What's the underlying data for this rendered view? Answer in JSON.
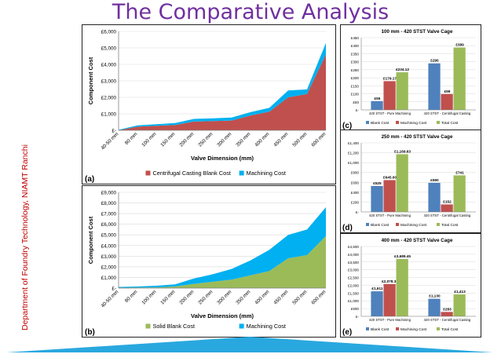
{
  "slide": {
    "title": "The Comparative Analysis",
    "side_caption": "Department of Foundry Technology, NIAMT Ranchi"
  },
  "colors": {
    "title": "#7030a0",
    "side": "#c00000",
    "blank": "#c0504d",
    "machining": "#00b0f0",
    "solid": "#9bbb59",
    "bar_blank": "#4f81bd",
    "bar_machining": "#c0504d",
    "bar_total": "#9bbb59",
    "triangle": "#29a8df"
  },
  "chart_data": [
    {
      "id": "a",
      "panel_label": "(a)",
      "type": "area",
      "stacked": true,
      "categories": [
        "40-50 mm",
        "80 mm",
        "100 mm",
        "150 mm",
        "200 mm",
        "250 mm",
        "300 mm",
        "350 mm",
        "400 mm",
        "450 mm",
        "500 mm",
        "600 mm"
      ],
      "series": [
        {
          "name": "Centrifugal Casting Blank Cost",
          "color": "#c0504d",
          "values": [
            0,
            220,
            270,
            320,
            530,
            560,
            590,
            900,
            1130,
            2000,
            2200,
            4600
          ]
        },
        {
          "name": "Machining Cost",
          "color": "#00b0f0",
          "values": [
            30,
            80,
            100,
            120,
            160,
            170,
            180,
            200,
            230,
            420,
            280,
            700
          ]
        }
      ],
      "y_ticks": [
        "£-",
        "£1,000",
        "£2,000",
        "£3,000",
        "£4,000",
        "£5,000",
        "£6,000"
      ],
      "ylim": [
        0,
        6000
      ],
      "xlabel": "Valve Dimension (mm)",
      "ylabel": "Component Cost",
      "legend": [
        "Centrifugal Casting Blank Cost",
        "Machining Cost"
      ]
    },
    {
      "id": "b",
      "panel_label": "(b)",
      "type": "area",
      "stacked": true,
      "categories": [
        "40-50 mm",
        "80 mm",
        "100 mm",
        "150 mm",
        "200 mm",
        "250 mm",
        "300 mm",
        "350 mm",
        "400 mm",
        "450 mm",
        "500 mm",
        "600 mm"
      ],
      "series": [
        {
          "name": "Solid Blank Cost",
          "color": "#9bbb59",
          "values": [
            20,
            50,
            70,
            150,
            400,
            600,
            800,
            1200,
            1600,
            2800,
            3100,
            4900
          ]
        },
        {
          "name": "Machining Cost",
          "color": "#00b0f0",
          "values": [
            80,
            100,
            150,
            200,
            500,
            700,
            1000,
            1400,
            2000,
            2200,
            2400,
            2700
          ]
        }
      ],
      "y_ticks": [
        "£-",
        "£1,000",
        "£2,000",
        "£3,000",
        "£4,000",
        "£5,000",
        "£6,000",
        "£7,000",
        "£8,000",
        "£9,000"
      ],
      "ylim": [
        0,
        9000
      ],
      "xlabel": "Valve Dimension (mm)",
      "ylabel": "Component Cost",
      "legend": [
        "Solid Blank Cost",
        "Machining Cost"
      ]
    },
    {
      "id": "c",
      "panel_label": "(c)",
      "type": "bar",
      "title": "100 mm - 420 STST Valve Cage",
      "categories": [
        "420 STST - Pure Machining",
        "420 STST - Centrifugal Casting"
      ],
      "series": [
        {
          "name": "Blank Cost",
          "color": "#4f81bd",
          "values": [
            55,
            290
          ],
          "labels": [
            "£55",
            "£290"
          ]
        },
        {
          "name": "Machining Cost",
          "color": "#c0504d",
          "values": [
            179.17,
            99
          ],
          "labels": [
            "£179.17",
            "£99"
          ]
        },
        {
          "name": "Total Cost",
          "color": "#9bbb59",
          "values": [
            234.12,
            389
          ],
          "labels": [
            "£234.12",
            "£389"
          ]
        }
      ],
      "y_ticks": [
        "£-",
        "£50",
        "£100",
        "£150",
        "£200",
        "£250",
        "£300",
        "£350",
        "£400",
        "£450"
      ],
      "ylim": [
        0,
        450
      ],
      "legend": [
        "Blank Cost",
        "Machining Cost",
        "Total Cost"
      ]
    },
    {
      "id": "d",
      "panel_label": "(d)",
      "type": "bar",
      "title": "250 mm - 420 STST Valve Cage",
      "categories": [
        "420 STST - Pure Machining",
        "420 STST - Centrifugal Casting"
      ],
      "series": [
        {
          "name": "Blank Cost",
          "color": "#4f81bd",
          "values": [
            525,
            590
          ],
          "labels": [
            "£525",
            "£590"
          ]
        },
        {
          "name": "Machining Cost",
          "color": "#c0504d",
          "values": [
            645,
            152
          ],
          "labels": [
            "£645.00",
            "£152"
          ]
        },
        {
          "name": "Total Cost",
          "color": "#9bbb59",
          "values": [
            1169.63,
            741
          ],
          "labels": [
            "£1,169.63",
            "£741"
          ]
        }
      ],
      "y_ticks": [
        "£-",
        "£200",
        "£400",
        "£600",
        "£800",
        "£1,000",
        "£1,200",
        "£1,400"
      ],
      "ylim": [
        0,
        1400
      ],
      "legend": [
        "Blank Cost",
        "Machining Cost",
        "Total Cost"
      ]
    },
    {
      "id": "e",
      "panel_label": "(e)",
      "type": "bar",
      "title": "400 mm - 420 STST Valve Cage",
      "categories": [
        "420 STST - Pure Machining",
        "420 STST - Centrifugal Casting"
      ],
      "series": [
        {
          "name": "Blank Cost",
          "color": "#4f81bd",
          "values": [
            1611,
            1130
          ],
          "labels": [
            "£1,611",
            "£1,130"
          ]
        },
        {
          "name": "Machining Cost",
          "color": "#c0504d",
          "values": [
            2078.33,
            283
          ],
          "labels": [
            "£2,078.33",
            "£283"
          ]
        },
        {
          "name": "Total Cost",
          "color": "#9bbb59",
          "values": [
            3689.45,
            1413
          ],
          "labels": [
            "£3,689.45",
            "£1,413"
          ]
        }
      ],
      "y_ticks": [
        "£-",
        "£500",
        "£1,000",
        "£1,500",
        "£2,000",
        "£2,500",
        "£3,000",
        "£3,500",
        "£4,000",
        "£4,500"
      ],
      "ylim": [
        0,
        4500
      ],
      "legend": [
        "Blank Cost",
        "Machining Cost",
        "Total Cost"
      ]
    }
  ]
}
